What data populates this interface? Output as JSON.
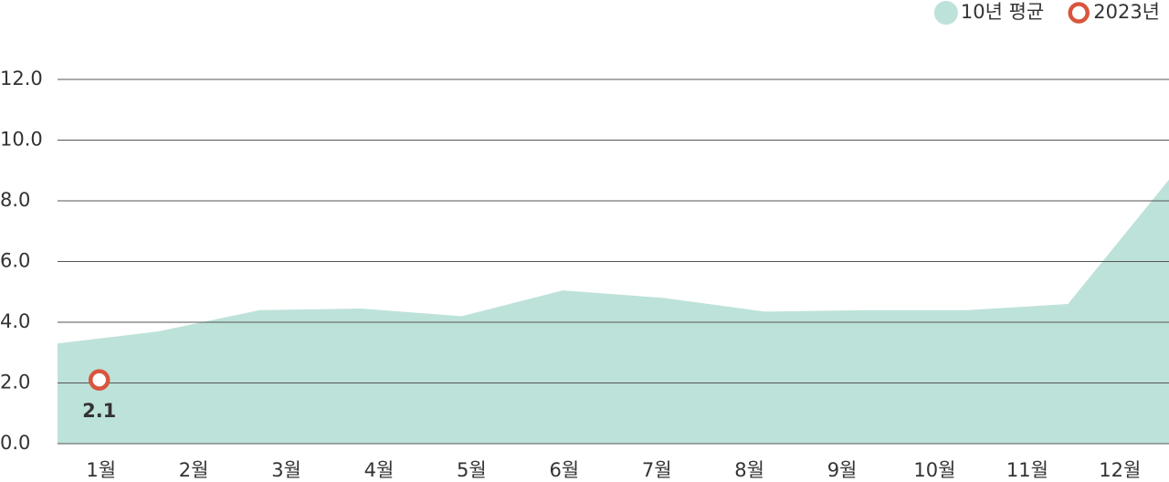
{
  "chart_data": {
    "type": "area",
    "categories": [
      "1월",
      "2월",
      "3월",
      "4월",
      "5월",
      "6월",
      "7월",
      "8월",
      "9월",
      "10월",
      "11월",
      "12월"
    ],
    "series": [
      {
        "name": "10년 평균",
        "type": "area",
        "color": "#bde2d9",
        "values": [
          3.3,
          3.7,
          4.4,
          4.45,
          4.2,
          5.05,
          4.8,
          4.35,
          4.4,
          4.4,
          4.6,
          8.7
        ]
      },
      {
        "name": "2023년",
        "type": "scatter",
        "color": "#d9553e",
        "values": [
          2.1,
          null,
          null,
          null,
          null,
          null,
          null,
          null,
          null,
          null,
          null,
          null
        ]
      }
    ],
    "ylim": [
      0,
      12
    ],
    "yticks": [
      {
        "value": 0,
        "label": "0.0"
      },
      {
        "value": 2,
        "label": "2.0"
      },
      {
        "value": 4,
        "label": "4.0"
      },
      {
        "value": 6,
        "label": "6.0"
      },
      {
        "value": 8,
        "label": "8.0"
      },
      {
        "value": 10,
        "label": "10.0"
      },
      {
        "value": 12,
        "label": "12.0"
      }
    ],
    "grid": true,
    "legend": "top-right"
  }
}
